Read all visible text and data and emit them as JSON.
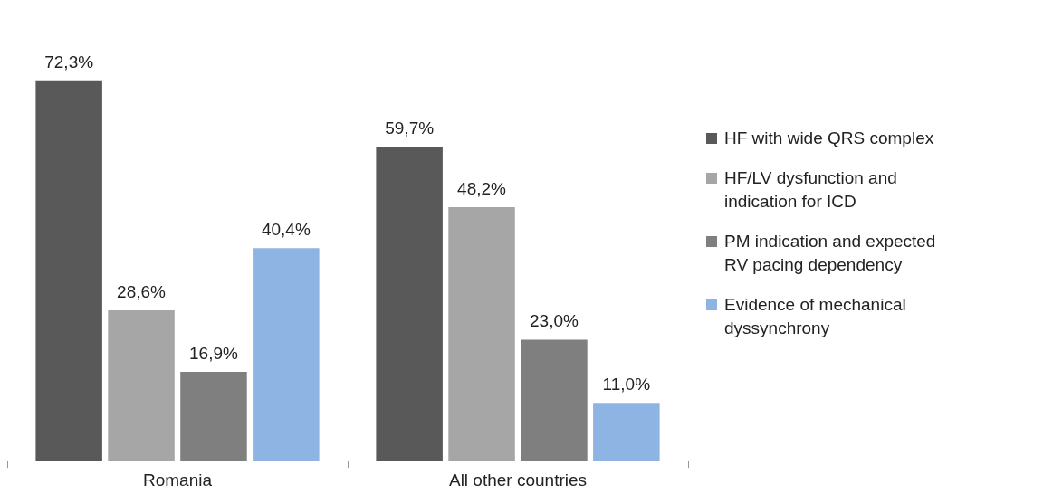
{
  "chart_data": {
    "type": "bar",
    "categories": [
      "Romania",
      "All other countries"
    ],
    "series": [
      {
        "name": "HF with wide QRS complex",
        "color": "#595959",
        "values": [
          72.3,
          59.7
        ],
        "value_labels": [
          "72,3%",
          "59,7%"
        ]
      },
      {
        "name": "HF/LV dysfunction and indication for ICD",
        "color": "#a6a6a6",
        "values": [
          28.6,
          48.2
        ],
        "value_labels": [
          "28,6%",
          "48,2%"
        ]
      },
      {
        "name": "PM indication and expected RV pacing dependency",
        "color": "#7f7f7f",
        "values": [
          16.9,
          23.0
        ],
        "value_labels": [
          "16,9%",
          "23,0%"
        ]
      },
      {
        "name": "Evidence of mechanical dyssynchrony",
        "color": "#8eb4e3",
        "values": [
          40.4,
          11.0
        ],
        "value_labels": [
          "40,4%",
          "11,0%"
        ]
      }
    ],
    "legend": "right",
    "grid": false
  }
}
